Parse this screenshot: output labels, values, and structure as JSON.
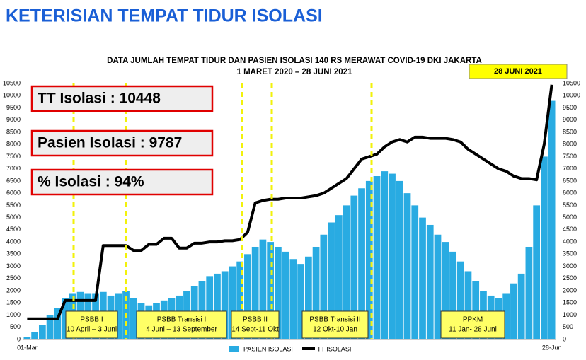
{
  "header": {
    "title": "KETERISIAN TEMPAT TIDUR ISOLASI"
  },
  "info_boxes": [
    "TT Isolasi : 10448",
    "Pasien Isolasi : 9787",
    "% Isolasi : 94%"
  ],
  "chart_data": {
    "type": "bar",
    "title": "DATA JUMLAH TEMPAT TIDUR DAN PASIEN ISOLASI 140 RS MERAWAT COVID-19 DKI JAKARTA",
    "subtitle": "1 MARET 2020 – 28 JUNI 2021",
    "date_badge": "28 JUNI 2021",
    "categories": [
      "01-Mar",
      null,
      null,
      null,
      null,
      null,
      null,
      null,
      null,
      null,
      null,
      null,
      null,
      null,
      null,
      null,
      null,
      null,
      null,
      null,
      null,
      null,
      null,
      null,
      null,
      null,
      null,
      null,
      null,
      null,
      null,
      null,
      null,
      null,
      null,
      null,
      null,
      null,
      null,
      null,
      null,
      null,
      null,
      null,
      null,
      null,
      null,
      null,
      null,
      null,
      null,
      null,
      null,
      null,
      null,
      null,
      null,
      null,
      null,
      null,
      null,
      null,
      null,
      null,
      null,
      null,
      null,
      null,
      null,
      "28-Jun"
    ],
    "series": [
      {
        "name": "PASIEN ISOLASI",
        "type": "bar",
        "color": "#29abe2",
        "values": [
          100,
          300,
          600,
          1000,
          1300,
          1700,
          1900,
          1950,
          1900,
          1900,
          1950,
          1800,
          1900,
          2000,
          1700,
          1500,
          1400,
          1500,
          1600,
          1700,
          1800,
          2000,
          2200,
          2400,
          2600,
          2700,
          2800,
          3000,
          3200,
          3500,
          3800,
          4100,
          4000,
          3800,
          3600,
          3300,
          3100,
          3400,
          3800,
          4300,
          4800,
          5100,
          5500,
          5900,
          6200,
          6500,
          6700,
          6900,
          6800,
          6500,
          6000,
          5500,
          5000,
          4700,
          4300,
          4000,
          3600,
          3200,
          2800,
          2400,
          2000,
          1800,
          1700,
          1900,
          2300,
          2700,
          3800,
          5500,
          7500,
          9787
        ]
      },
      {
        "name": "TT ISOLASI",
        "type": "line",
        "color": "#000000",
        "values": [
          850,
          850,
          850,
          850,
          850,
          1600,
          1600,
          1600,
          1600,
          1600,
          3850,
          3850,
          3850,
          3850,
          3650,
          3650,
          3900,
          3900,
          4150,
          4150,
          3750,
          3750,
          3950,
          3950,
          4000,
          4000,
          4050,
          4050,
          4100,
          4400,
          5600,
          5700,
          5750,
          5750,
          5800,
          5800,
          5800,
          5850,
          5900,
          6000,
          6200,
          6400,
          6600,
          7000,
          7400,
          7500,
          7600,
          7900,
          8100,
          8200,
          8100,
          8300,
          8300,
          8250,
          8250,
          8250,
          8200,
          8100,
          7800,
          7600,
          7400,
          7200,
          7000,
          6900,
          6700,
          6600,
          6600,
          6550,
          8000,
          10448
        ]
      }
    ],
    "ylim": [
      0,
      10500
    ],
    "yticks": [
      0,
      500,
      1000,
      1500,
      2000,
      2500,
      3000,
      3500,
      4000,
      4500,
      5000,
      5500,
      6000,
      6500,
      7000,
      7500,
      8000,
      8500,
      9000,
      9500,
      10000,
      10500
    ],
    "y2lim": [
      0,
      10500
    ],
    "y2ticks": [
      0,
      500,
      1000,
      1500,
      2000,
      2500,
      3000,
      3500,
      4000,
      4500,
      5000,
      5500,
      6000,
      6500,
      7000,
      7500,
      8000,
      8500,
      9000,
      9500,
      10000,
      10500
    ],
    "annotations": [
      [
        "PSBB I",
        "10 April – 3 Juni"
      ],
      [
        "PSBB Transisi I",
        "4 Juni – 13 September"
      ],
      [
        "PSBB II",
        "14 Sept-11 Okt"
      ],
      [
        "PSBB Transisi II",
        "12 Okt-10 Jan"
      ],
      [
        "PPKM",
        "11 Jan- 28 Juni"
      ]
    ]
  }
}
